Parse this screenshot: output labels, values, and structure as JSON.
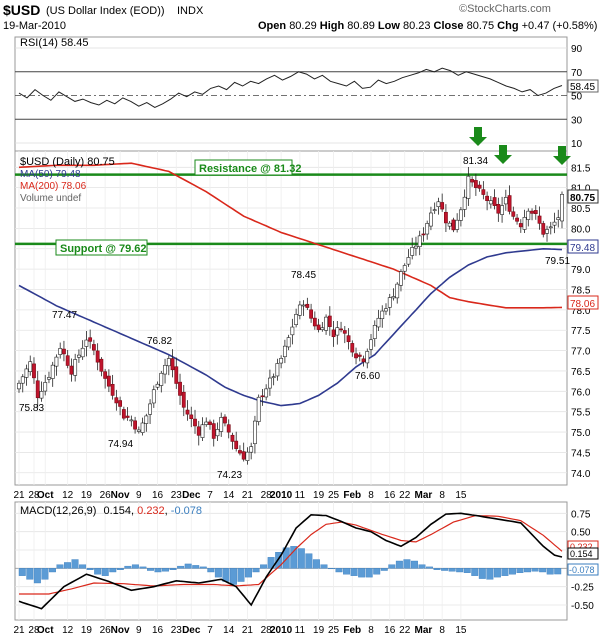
{
  "header": {
    "symbol": "$USD",
    "name": "(US Dollar Index (EOD))",
    "exchange": "INDX",
    "date": "19-Mar-2010",
    "open_label": "Open",
    "open": "80.29",
    "high_label": "High",
    "high": "80.89",
    "low_label": "Low",
    "low": "80.23",
    "close_label": "Close",
    "close": "80.75",
    "chg_label": "Chg",
    "chg": "+0.47 (+0.58%)",
    "watermark": "©StockCharts.com"
  },
  "chart_data": [
    {
      "type": "line",
      "panel": "rsi",
      "legend": "RSI(14) 58.45",
      "current_label": "58.45",
      "ylim": [
        10,
        90
      ],
      "yticks": [
        10,
        30,
        50,
        70,
        90
      ],
      "reference_lines": [
        70,
        30
      ],
      "centerline": 50,
      "values": [
        52,
        48,
        55,
        50,
        46,
        53,
        49,
        45,
        47,
        44,
        42,
        46,
        43,
        48,
        45,
        41,
        44,
        40,
        43,
        47,
        52,
        49,
        53,
        51,
        56,
        58,
        55,
        61,
        58,
        62,
        60,
        64,
        67,
        63,
        66,
        70,
        68,
        64,
        67,
        62,
        60,
        58,
        62,
        56,
        57,
        63,
        60,
        62,
        65,
        67,
        69,
        72,
        70,
        73,
        71,
        67,
        70,
        68,
        66,
        64,
        61,
        58,
        56,
        53,
        55,
        50,
        52,
        56,
        58.45
      ]
    },
    {
      "type": "candlestick",
      "panel": "price",
      "title": "$USD (Daily) 80.75",
      "legend": [
        {
          "name": "MA(50) 79.48",
          "color": "#2f3a8f"
        },
        {
          "name": "MA(200) 78.06",
          "color": "#d9281b"
        },
        {
          "name": "Volume undef",
          "color": "#666666"
        }
      ],
      "ylim": [
        73.7,
        81.9
      ],
      "yticks": [
        "74.0",
        "74.5",
        "75.0",
        "75.5",
        "76.0",
        "76.5",
        "77.0",
        "77.5",
        "78.0",
        "78.5",
        "79.0",
        "79.5",
        "80.0",
        "80.5",
        "81.0",
        "81.5"
      ],
      "resistance": {
        "label": "Resistance @ 81.32",
        "value": 81.32
      },
      "support": {
        "label": "Support @ 79.62",
        "value": 79.62
      },
      "callouts": [
        "81.34",
        "78.45",
        "77.47",
        "76.82",
        "76.60",
        "75.83",
        "74.94",
        "74.23",
        "79.51"
      ],
      "last_price_label": "80.75",
      "ma50_label": "79.48",
      "ma200_label": "78.06",
      "close_path": [
        [
          0,
          76.2
        ],
        [
          3,
          76.7
        ],
        [
          5,
          75.9
        ],
        [
          8,
          76.4
        ],
        [
          11,
          77.1
        ],
        [
          14,
          76.5
        ],
        [
          16,
          76.9
        ],
        [
          18,
          77.3
        ],
        [
          20,
          77.0
        ],
        [
          23,
          76.3
        ],
        [
          26,
          75.8
        ],
        [
          28,
          75.4
        ],
        [
          30,
          75.3
        ],
        [
          32,
          75.0
        ],
        [
          34,
          75.4
        ],
        [
          36,
          76.0
        ],
        [
          38,
          76.5
        ],
        [
          40,
          76.8
        ],
        [
          42,
          76.2
        ],
        [
          44,
          75.6
        ],
        [
          46,
          75.3
        ],
        [
          48,
          75.0
        ],
        [
          50,
          75.3
        ],
        [
          52,
          74.9
        ],
        [
          54,
          75.3
        ],
        [
          56,
          75.0
        ],
        [
          58,
          74.6
        ],
        [
          60,
          74.4
        ],
        [
          62,
          74.6
        ],
        [
          64,
          75.8
        ],
        [
          66,
          76.1
        ],
        [
          68,
          76.4
        ],
        [
          70,
          76.8
        ],
        [
          72,
          77.3
        ],
        [
          74,
          77.9
        ],
        [
          76,
          78.2
        ],
        [
          78,
          77.8
        ],
        [
          80,
          77.5
        ],
        [
          82,
          77.8
        ],
        [
          84,
          77.4
        ],
        [
          86,
          77.6
        ],
        [
          88,
          77.2
        ],
        [
          90,
          76.9
        ],
        [
          92,
          76.8
        ],
        [
          94,
          77.3
        ],
        [
          96,
          77.8
        ],
        [
          98,
          78.1
        ],
        [
          100,
          78.4
        ],
        [
          102,
          78.9
        ],
        [
          104,
          79.3
        ],
        [
          106,
          79.6
        ],
        [
          108,
          79.9
        ],
        [
          110,
          80.4
        ],
        [
          112,
          80.7
        ],
        [
          114,
          80.2
        ],
        [
          116,
          80.0
        ],
        [
          118,
          80.5
        ],
        [
          120,
          81.2
        ],
        [
          122,
          81.0
        ],
        [
          124,
          80.8
        ],
        [
          126,
          80.6
        ],
        [
          128,
          80.4
        ],
        [
          130,
          80.7
        ],
        [
          132,
          80.3
        ],
        [
          134,
          80.1
        ],
        [
          136,
          80.5
        ],
        [
          138,
          80.3
        ],
        [
          140,
          79.9
        ],
        [
          142,
          80.0
        ],
        [
          144,
          80.28
        ],
        [
          145,
          80.75
        ]
      ],
      "ma50_path": [
        [
          0,
          78.6
        ],
        [
          10,
          78.1
        ],
        [
          20,
          77.7
        ],
        [
          30,
          77.3
        ],
        [
          40,
          76.9
        ],
        [
          50,
          76.4
        ],
        [
          55,
          76.1
        ],
        [
          60,
          75.9
        ],
        [
          65,
          75.75
        ],
        [
          70,
          75.65
        ],
        [
          75,
          75.7
        ],
        [
          80,
          75.9
        ],
        [
          85,
          76.2
        ],
        [
          90,
          76.6
        ],
        [
          95,
          76.9
        ],
        [
          100,
          77.4
        ],
        [
          105,
          77.9
        ],
        [
          110,
          78.4
        ],
        [
          115,
          78.8
        ],
        [
          120,
          79.1
        ],
        [
          125,
          79.3
        ],
        [
          130,
          79.4
        ],
        [
          135,
          79.45
        ],
        [
          140,
          79.5
        ],
        [
          145,
          79.48
        ]
      ],
      "ma200_path": [
        [
          0,
          81.5
        ],
        [
          10,
          81.55
        ],
        [
          20,
          81.55
        ],
        [
          30,
          81.6
        ],
        [
          40,
          81.4
        ],
        [
          50,
          80.9
        ],
        [
          60,
          80.3
        ],
        [
          70,
          79.9
        ],
        [
          80,
          79.6
        ],
        [
          90,
          79.3
        ],
        [
          100,
          79.0
        ],
        [
          105,
          78.8
        ],
        [
          110,
          78.6
        ],
        [
          115,
          78.3
        ],
        [
          120,
          78.2
        ],
        [
          130,
          78.05
        ],
        [
          140,
          78.05
        ],
        [
          145,
          78.06
        ]
      ]
    },
    {
      "type": "line",
      "panel": "macd",
      "legend_prefix": "MACD(12,26,9)",
      "macd_value": "0.154",
      "signal_value": "0.232",
      "hist_value": "-0.078",
      "ylim": [
        -0.65,
        0.85
      ],
      "yticks": [
        "0.75",
        "0.50",
        "0.25",
        "0.00",
        "-0.25",
        "-0.50"
      ],
      "current_labels": [
        "0.232",
        "0.154",
        "-0.078"
      ],
      "macd_path": [
        [
          0,
          -0.45
        ],
        [
          6,
          -0.55
        ],
        [
          12,
          -0.25
        ],
        [
          18,
          -0.08
        ],
        [
          24,
          -0.18
        ],
        [
          30,
          -0.3
        ],
        [
          36,
          -0.25
        ],
        [
          42,
          -0.17
        ],
        [
          48,
          -0.2
        ],
        [
          54,
          -0.15
        ],
        [
          58,
          -0.25
        ],
        [
          62,
          -0.5
        ],
        [
          66,
          -0.12
        ],
        [
          70,
          0.18
        ],
        [
          74,
          0.55
        ],
        [
          78,
          0.73
        ],
        [
          82,
          0.72
        ],
        [
          86,
          0.64
        ],
        [
          90,
          0.55
        ],
        [
          94,
          0.5
        ],
        [
          98,
          0.38
        ],
        [
          102,
          0.3
        ],
        [
          106,
          0.42
        ],
        [
          110,
          0.6
        ],
        [
          114,
          0.74
        ],
        [
          118,
          0.75
        ],
        [
          122,
          0.72
        ],
        [
          128,
          0.67
        ],
        [
          134,
          0.62
        ],
        [
          140,
          0.3
        ],
        [
          143,
          0.18
        ],
        [
          145,
          0.154
        ]
      ],
      "signal_path": [
        [
          0,
          -0.35
        ],
        [
          8,
          -0.35
        ],
        [
          14,
          -0.28
        ],
        [
          20,
          -0.2
        ],
        [
          28,
          -0.21
        ],
        [
          36,
          -0.24
        ],
        [
          44,
          -0.22
        ],
        [
          52,
          -0.22
        ],
        [
          58,
          -0.24
        ],
        [
          64,
          -0.22
        ],
        [
          70,
          0.05
        ],
        [
          74,
          0.27
        ],
        [
          78,
          0.46
        ],
        [
          82,
          0.6
        ],
        [
          86,
          0.63
        ],
        [
          90,
          0.59
        ],
        [
          96,
          0.48
        ],
        [
          102,
          0.38
        ],
        [
          106,
          0.36
        ],
        [
          110,
          0.46
        ],
        [
          116,
          0.63
        ],
        [
          122,
          0.72
        ],
        [
          128,
          0.71
        ],
        [
          134,
          0.65
        ],
        [
          140,
          0.45
        ],
        [
          145,
          0.232
        ]
      ],
      "histogram": [
        -0.1,
        -0.15,
        -0.2,
        -0.15,
        -0.05,
        0.05,
        0.08,
        0.12,
        0.05,
        -0.02,
        -0.08,
        -0.1,
        -0.05,
        -0.02,
        0.03,
        0.05,
        0.02,
        -0.03,
        -0.05,
        -0.04,
        -0.02,
        0.03,
        0.06,
        0.04,
        0.02,
        -0.05,
        -0.12,
        -0.18,
        -0.22,
        -0.18,
        -0.12,
        -0.05,
        0.05,
        0.15,
        0.22,
        0.28,
        0.3,
        0.27,
        0.2,
        0.12,
        0.05,
        0.0,
        -0.05,
        -0.08,
        -0.1,
        -0.12,
        -0.12,
        -0.08,
        -0.03,
        0.05,
        0.1,
        0.12,
        0.1,
        0.05,
        0.02,
        -0.02,
        -0.03,
        -0.04,
        -0.05,
        -0.06,
        -0.1,
        -0.14,
        -0.15,
        -0.12,
        -0.1,
        -0.08,
        -0.06,
        -0.05,
        -0.04,
        -0.05,
        -0.08,
        -0.078
      ]
    }
  ],
  "x_axis": {
    "labels_top": [
      {
        "text": "21",
        "bar": 0
      },
      {
        "text": "28",
        "bar": 4
      },
      {
        "text": "Oct",
        "bar": 7,
        "bold": true
      },
      {
        "text": "12",
        "bar": 13
      },
      {
        "text": "19",
        "bar": 18
      },
      {
        "text": "26",
        "bar": 23
      },
      {
        "text": "Nov",
        "bar": 27,
        "bold": true
      },
      {
        "text": "9",
        "bar": 32
      },
      {
        "text": "16",
        "bar": 37
      },
      {
        "text": "23",
        "bar": 42
      },
      {
        "text": "Dec",
        "bar": 46,
        "bold": true
      },
      {
        "text": "7",
        "bar": 51
      },
      {
        "text": "14",
        "bar": 56
      },
      {
        "text": "21",
        "bar": 61
      },
      {
        "text": "28",
        "bar": 66
      },
      {
        "text": "2010",
        "bar": 70,
        "bold": true
      },
      {
        "text": "11",
        "bar": 75
      },
      {
        "text": "19",
        "bar": 80
      },
      {
        "text": "25",
        "bar": 84
      },
      {
        "text": "Feb",
        "bar": 89,
        "bold": true
      },
      {
        "text": "8",
        "bar": 94
      },
      {
        "text": "16",
        "bar": 99
      },
      {
        "text": "22",
        "bar": 103
      },
      {
        "text": "Mar",
        "bar": 108,
        "bold": true
      },
      {
        "text": "8",
        "bar": 113
      },
      {
        "text": "15",
        "bar": 118
      }
    ]
  },
  "arrows": 3
}
